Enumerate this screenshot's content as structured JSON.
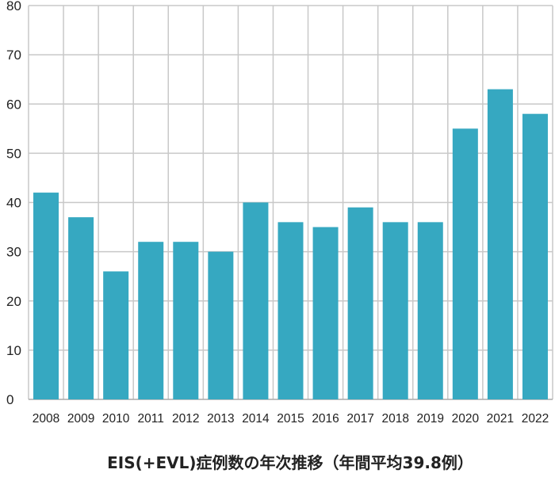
{
  "chart_data": {
    "type": "bar",
    "title": "EIS(+EVL)症例数の年次推移（年間平均39.8例）",
    "xlabel": "",
    "ylabel": "",
    "categories": [
      "2008",
      "2009",
      "2010",
      "2011",
      "2012",
      "2013",
      "2014",
      "2015",
      "2016",
      "2017",
      "2018",
      "2019",
      "2020",
      "2021",
      "2022"
    ],
    "values": [
      42,
      37,
      26,
      32,
      32,
      30,
      40,
      36,
      35,
      39,
      36,
      36,
      55,
      63,
      58
    ],
    "ylim": [
      0,
      80
    ],
    "yticks": [
      "0",
      "10",
      "20",
      "30",
      "40",
      "50",
      "60",
      "70",
      "80"
    ],
    "grid": true,
    "legend": "none",
    "colors": {
      "bar": "#36a8c1",
      "grid": "#c8c8c8",
      "axis": "#aaaaaa",
      "text": "#222222"
    }
  }
}
